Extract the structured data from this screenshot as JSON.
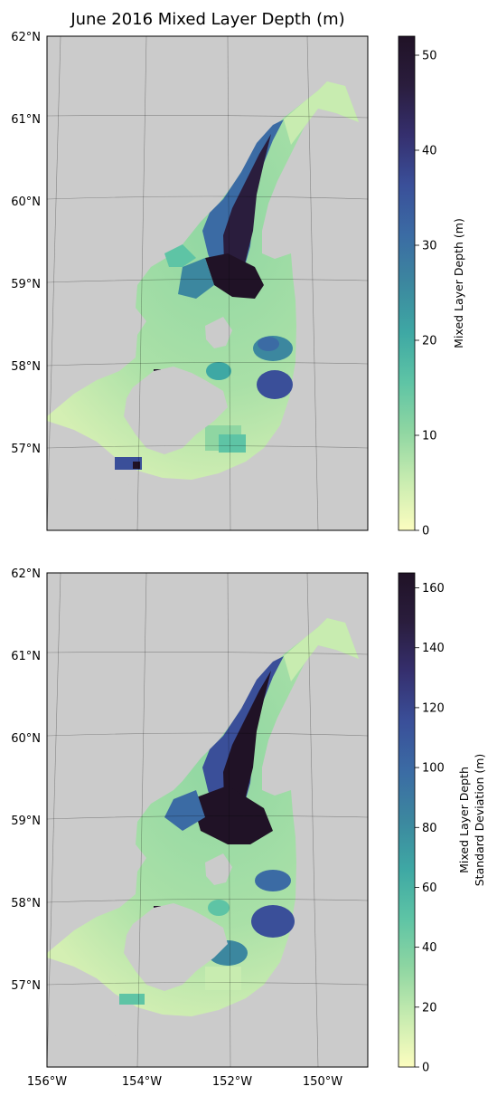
{
  "title": "June 2016 Mixed Layer Depth (m)",
  "lat_labels": [
    "62°N",
    "61°N",
    "60°N",
    "59°N",
    "58°N",
    "57°N"
  ],
  "lon_labels": [
    "156°W",
    "154°W",
    "152°W",
    "150°W"
  ],
  "colors": {
    "land": "#cbcbcb",
    "ocean_bg": "#ffffff",
    "colormap": [
      "#fcfdbf",
      "#c8ecb0",
      "#8fd6a2",
      "#5ec4a5",
      "#3ea8a4",
      "#3c879f",
      "#3b6ba4",
      "#3a4f99",
      "#352f6e",
      "#2a1d3d",
      "#201226"
    ]
  },
  "panels": [
    {
      "id": "mld",
      "colorbar_label": "Mixed Layer Depth (m)",
      "colorbar_ticks": [
        "0",
        "10",
        "20",
        "30",
        "40",
        "50"
      ],
      "colorbar_range": [
        0,
        52
      ]
    },
    {
      "id": "mld_std",
      "colorbar_label_lines": [
        "Mixed Layer Depth",
        "Standard Deviation (m)"
      ],
      "colorbar_ticks": [
        "0",
        "20",
        "40",
        "60",
        "80",
        "100",
        "120",
        "140",
        "160"
      ],
      "colorbar_range": [
        0,
        165
      ]
    }
  ]
}
